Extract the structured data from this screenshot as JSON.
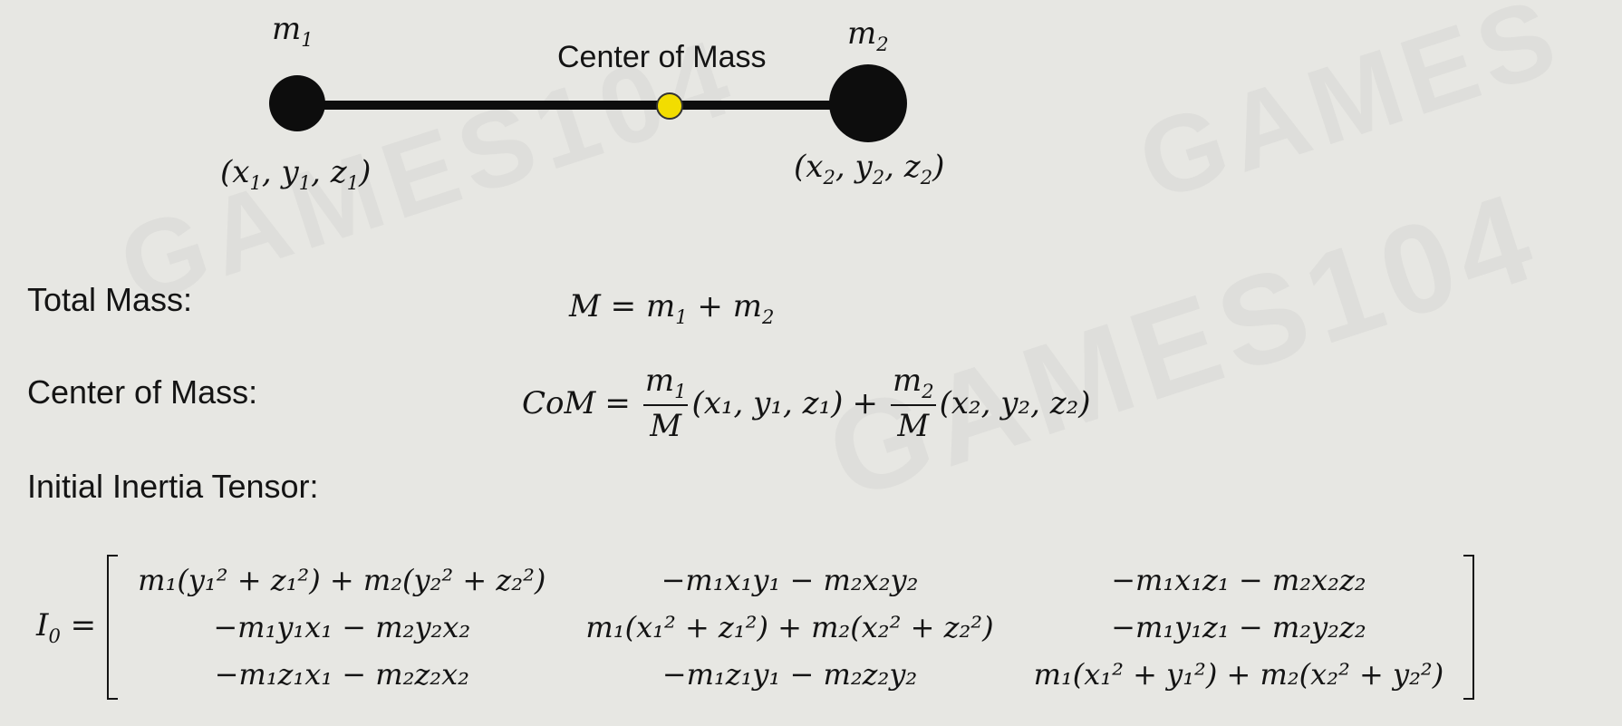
{
  "diagram": {
    "mass1_label": "m",
    "mass1_sub": "1",
    "mass2_label": "m",
    "mass2_sub": "2",
    "com_label": "Center of Mass",
    "pos1": {
      "x": "x",
      "xs": "1",
      "y": "y",
      "ys": "1",
      "z": "z",
      "zs": "1"
    },
    "pos2": {
      "x": "x",
      "xs": "2",
      "y": "y",
      "ys": "2",
      "z": "z",
      "zs": "2"
    },
    "colors": {
      "mass": "#0d0d0d",
      "rod": "#0d0d0d",
      "com_fill": "#f2dd00",
      "com_stroke": "#333333"
    }
  },
  "rows": {
    "total_mass_label": "Total Mass:",
    "total_mass_eq_lhs": "M",
    "total_mass_eq_rhs_a": "m",
    "total_mass_eq_rhs_a_sub": "1",
    "total_mass_eq_plus": "+",
    "total_mass_eq_rhs_b": "m",
    "total_mass_eq_rhs_b_sub": "2",
    "com_row_label": "Center of Mass:",
    "com_eq_lhs": "CoM",
    "com_eq_num1": "m",
    "com_eq_num1_sub": "1",
    "com_eq_den1": "M",
    "com_eq_tuple1": "(x₁, y₁, z₁)",
    "com_eq_num2": "m",
    "com_eq_num2_sub": "2",
    "com_eq_den2": "M",
    "com_eq_tuple2": "(x₂, y₂, z₂)",
    "inertia_label": "Initial Inertia Tensor:"
  },
  "matrix": {
    "lhs": "I",
    "lhs_sub": "0",
    "cells": [
      [
        "m₁(y₁² + z₁²) + m₂(y₂² + z₂²)",
        "−m₁x₁y₁ − m₂x₂y₂",
        "−m₁x₁z₁ − m₂x₂z₂"
      ],
      [
        "−m₁y₁x₁ − m₂y₂x₂",
        "m₁(x₁² + z₁²) + m₂(x₂² + z₂²)",
        "−m₁y₁z₁ − m₂y₂z₂"
      ],
      [
        "−m₁z₁x₁ − m₂z₂x₂",
        "−m₁z₁y₁ − m₂z₂y₂",
        "m₁(x₁² + y₁²) + m₂(x₂² + y₂²)"
      ]
    ]
  }
}
